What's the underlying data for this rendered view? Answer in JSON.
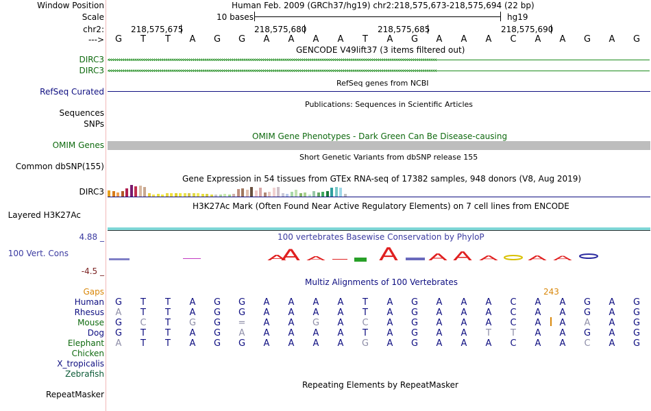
{
  "labels": {
    "window_position": "Window Position",
    "scale": "Scale",
    "chr": "chr2:",
    "arrow": "--->",
    "dirc3_a": "DIRC3",
    "dirc3_b": "DIRC3",
    "refseq": "RefSeq Curated",
    "sequences": "Sequences",
    "snps": "SNPs",
    "omim": "OMIM Genes",
    "dbsnp": "Common dbSNP(155)",
    "gtex": "DIRC3",
    "h3k27ac": "Layered H3K27Ac",
    "cons_max": "4.88 _",
    "cons": "100 Vert. Cons",
    "cons_min": "-4.5 _",
    "gaps": "Gaps",
    "human": "Human",
    "rhesus": "Rhesus",
    "mouse": "Mouse",
    "dog": "Dog",
    "elephant": "Elephant",
    "chicken": "Chicken",
    "xtrop": "X_tropicalis",
    "zebrafish": "Zebrafish",
    "repeatmasker": "RepeatMasker"
  },
  "header": {
    "position": "Human Feb. 2009 (GRCh37/hg19)   chr2:218,575,673-218,575,694 (22 bp)",
    "scale_text": "10 bases",
    "assembly": "hg19",
    "ticks": [
      "218,575,675",
      "218,575,680",
      "218,575,685",
      "218,575,690"
    ]
  },
  "titles": {
    "gencode": "GENCODE V49lift37 (3 items filtered out)",
    "refseq": "RefSeq genes from NCBI",
    "publications": "Publications: Sequences in Scientific Articles",
    "omim": "OMIM Gene Phenotypes - Dark Green Can Be Disease-causing",
    "dbsnp": "Short Genetic Variants from dbSNP release 155",
    "gtex": "Gene Expression in 54 tissues from GTEx RNA-seq of 17382 samples, 948 donors (V8, Aug 2019)",
    "h3k27ac": "H3K27Ac Mark (Often Found Near Active Regulatory Elements) on 7 cell lines from ENCODE",
    "phylop": "100 vertebrates Basewise Conservation by PhyloP",
    "multiz": "Multiz Alignments of 100 Vertebrates",
    "repeatmasker": "Repeating Elements by RepeatMasker",
    "gap_value": "243"
  },
  "sequence": {
    "reference": [
      "G",
      "T",
      "T",
      "A",
      "G",
      "G",
      "A",
      "A",
      "A",
      "A",
      "T",
      "A",
      "G",
      "A",
      "A",
      "A",
      "C",
      "A",
      "A",
      "G",
      "A",
      "G"
    ],
    "human": [
      "G",
      "T",
      "T",
      "A",
      "G",
      "G",
      "A",
      "A",
      "A",
      "A",
      "T",
      "A",
      "G",
      "A",
      "A",
      "A",
      "C",
      "A",
      "A",
      "G",
      "A",
      "G"
    ],
    "rhesus": [
      "A",
      "T",
      "T",
      "A",
      "G",
      "G",
      "A",
      "A",
      "A",
      "A",
      "T",
      "A",
      "G",
      "A",
      "A",
      "A",
      "C",
      "A",
      "A",
      "G",
      "A",
      "G"
    ],
    "mouse": [
      "G",
      "C",
      "T",
      "G",
      "G",
      "=",
      "A",
      "A",
      "G",
      "A",
      "C",
      "A",
      "G",
      "A",
      "A",
      "A",
      "C",
      "A",
      "A",
      "A",
      "A",
      "G"
    ],
    "dog": [
      "G",
      "T",
      "T",
      "A",
      "G",
      "A",
      "A",
      "A",
      "A",
      "A",
      "T",
      "A",
      "G",
      "A",
      "A",
      "T",
      "T",
      "A",
      "A",
      "G",
      "A",
      "G"
    ],
    "elephant": [
      "A",
      "T",
      "T",
      "A",
      "G",
      "G",
      "A",
      "A",
      "A",
      "A",
      "G",
      "A",
      "G",
      "A",
      "A",
      "A",
      "C",
      "A",
      "A",
      "C",
      "A",
      "G"
    ]
  },
  "colors": {
    "gene_green": "#1a8a1a",
    "navy": "#0d0d80",
    "omim_gray": "#bdbdbd",
    "h3k27ac": "#7fd7d7",
    "mismatch": "#9a9ab0"
  }
}
